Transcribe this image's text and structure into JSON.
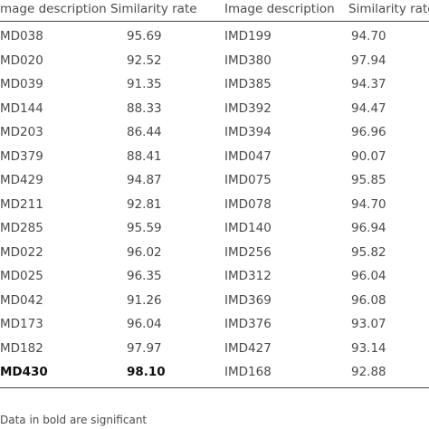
{
  "table": {
    "header": [
      "mage description",
      "Similarity rate",
      "Image description",
      "Similarity rate"
    ],
    "rows": [
      [
        "MD038",
        "95.69",
        "IMD199",
        "94.70"
      ],
      [
        "MD020",
        "92.52",
        "IMD380",
        "97.94"
      ],
      [
        "MD039",
        "91.35",
        "IMD385",
        "94.37"
      ],
      [
        "MD144",
        "88.33",
        "IMD392",
        "94.47"
      ],
      [
        "MD203",
        "86.44",
        "IMD394",
        "96.96"
      ],
      [
        "MD379",
        "88.41",
        "IMD047",
        "90.07"
      ],
      [
        "MD429",
        "94.87",
        "IMD075",
        "95.85"
      ],
      [
        "MD211",
        "92.81",
        "IMD078",
        "94.70"
      ],
      [
        "MD285",
        "95.59",
        "IMD140",
        "96.94"
      ],
      [
        "MD022",
        "96.02",
        "IMD256",
        "95.82"
      ],
      [
        "MD025",
        "96.35",
        "IMD312",
        "96.04"
      ],
      [
        "MD042",
        "91.26",
        "IMD369",
        "96.08"
      ],
      [
        "MD173",
        "96.04",
        "IMD376",
        "93.07"
      ],
      [
        "MD182",
        "97.97",
        "IMD427",
        "93.14"
      ],
      [
        "MD430",
        "98.10",
        "IMD168",
        "92.88"
      ]
    ],
    "footnote": "Data in bold are significant"
  }
}
